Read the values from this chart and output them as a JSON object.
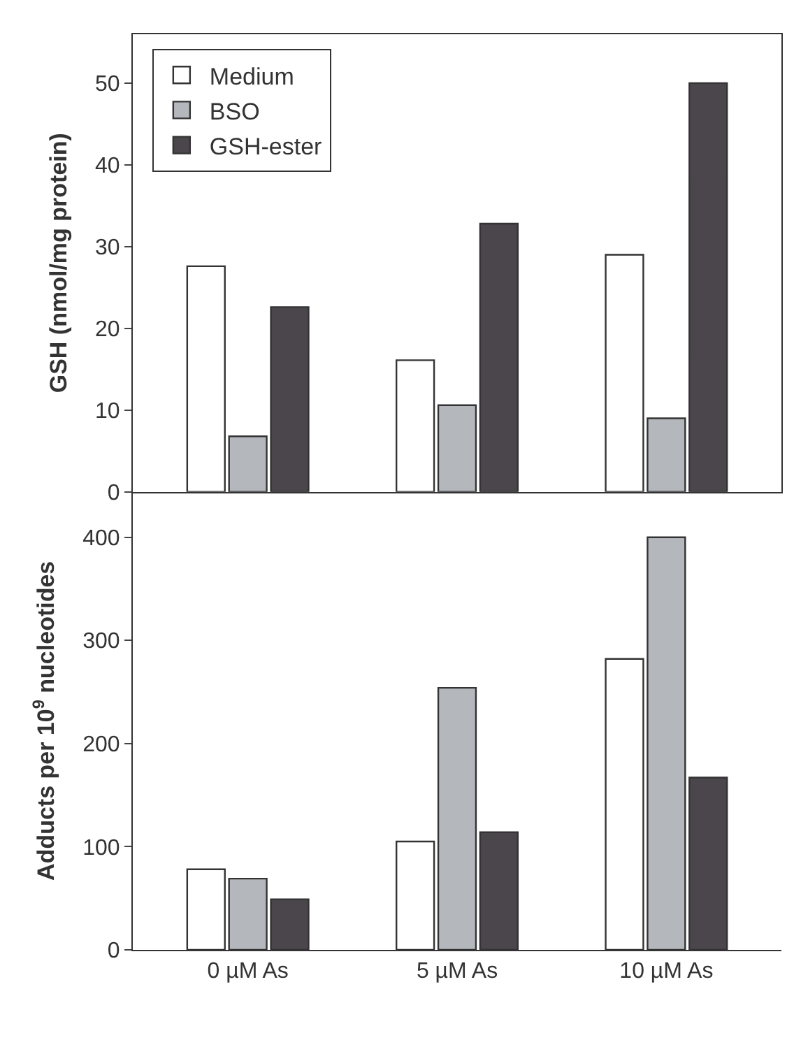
{
  "chart_data": [
    {
      "type": "bar",
      "ylabel": "GSH (nmol/mg protein)",
      "ylim": [
        0,
        56
      ],
      "yticks": [
        0,
        10,
        20,
        30,
        40,
        50
      ],
      "grid": false,
      "legend": "top left",
      "series": [
        {
          "name": "Medium",
          "color": "#ffffff",
          "values": [
            27.6,
            16.1,
            29.0
          ]
        },
        {
          "name": "BSO",
          "color": "#b4b8bc",
          "values": [
            6.8,
            10.6,
            9.0
          ]
        },
        {
          "name": "GSH-ester",
          "color": "#4a464c",
          "values": [
            22.6,
            32.8,
            50
          ]
        }
      ]
    },
    {
      "type": "bar",
      "ylabel": "Adducts per 10$^{9}$ nucleotides",
      "categories": [
        "0 µM As",
        "5 µM As",
        "10 µM As"
      ],
      "ylim": [
        0,
        444
      ],
      "yticks": [
        0,
        100,
        200,
        300,
        400
      ],
      "grid": false,
      "legend": false,
      "series": [
        {
          "color": "#ffffff",
          "values": [
            78,
            105,
            282
          ]
        },
        {
          "color": "#b4b8bc",
          "values": [
            69,
            254,
            400
          ]
        },
        {
          "color": "#4a464c",
          "values": [
            49,
            114,
            167
          ]
        }
      ]
    }
  ]
}
